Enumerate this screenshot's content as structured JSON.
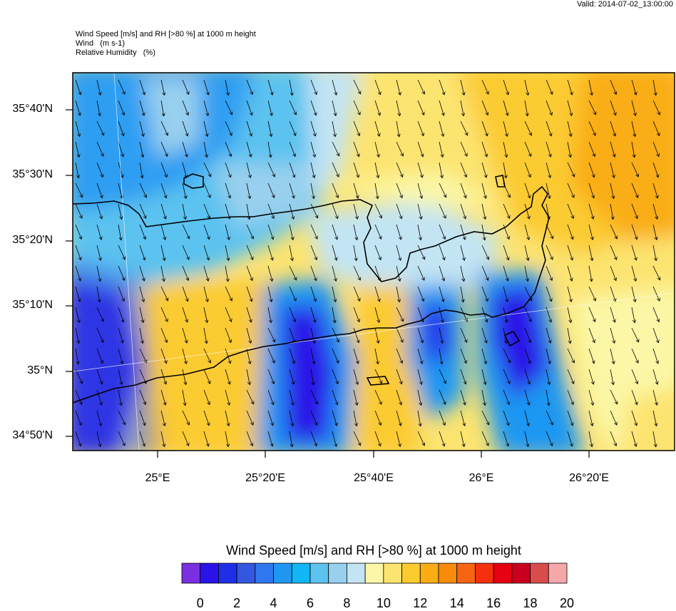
{
  "valid_text": "Valid: 2014-07-02_13:00:00",
  "titles": [
    "Wind Speed [m/s] and RH [>80 %] at 1000 m height",
    "Wind   (m s-1)",
    "Relative Humidity   (%)"
  ],
  "lat_labels": [
    "35°40'N",
    "35°30'N",
    "35°20'N",
    "35°10'N",
    "35°N",
    "34°50'N"
  ],
  "lon_labels": [
    "25°E",
    "25°20'E",
    "25°40'E",
    "26°E",
    "26°20'E"
  ],
  "colorbar": {
    "title": "Wind Speed [m/s] and RH [>80 %] at 1000 m height",
    "labels": [
      "0",
      "2",
      "4",
      "6",
      "8",
      "10",
      "12",
      "14",
      "16",
      "18",
      "20"
    ],
    "colors": [
      "#7a2fe0",
      "#2a13e8",
      "#1f2fe8",
      "#3457e0",
      "#2f77ef",
      "#1f97f2",
      "#12b6f5",
      "#5cc2f0",
      "#98d0ee",
      "#c2e4f3",
      "#fbf7a6",
      "#fce470",
      "#fbcb30",
      "#f9ad12",
      "#f88b0a",
      "#f76412",
      "#f4300e",
      "#e50012",
      "#c8001e",
      "#d84c4c",
      "#f5a8aa"
    ]
  }
}
